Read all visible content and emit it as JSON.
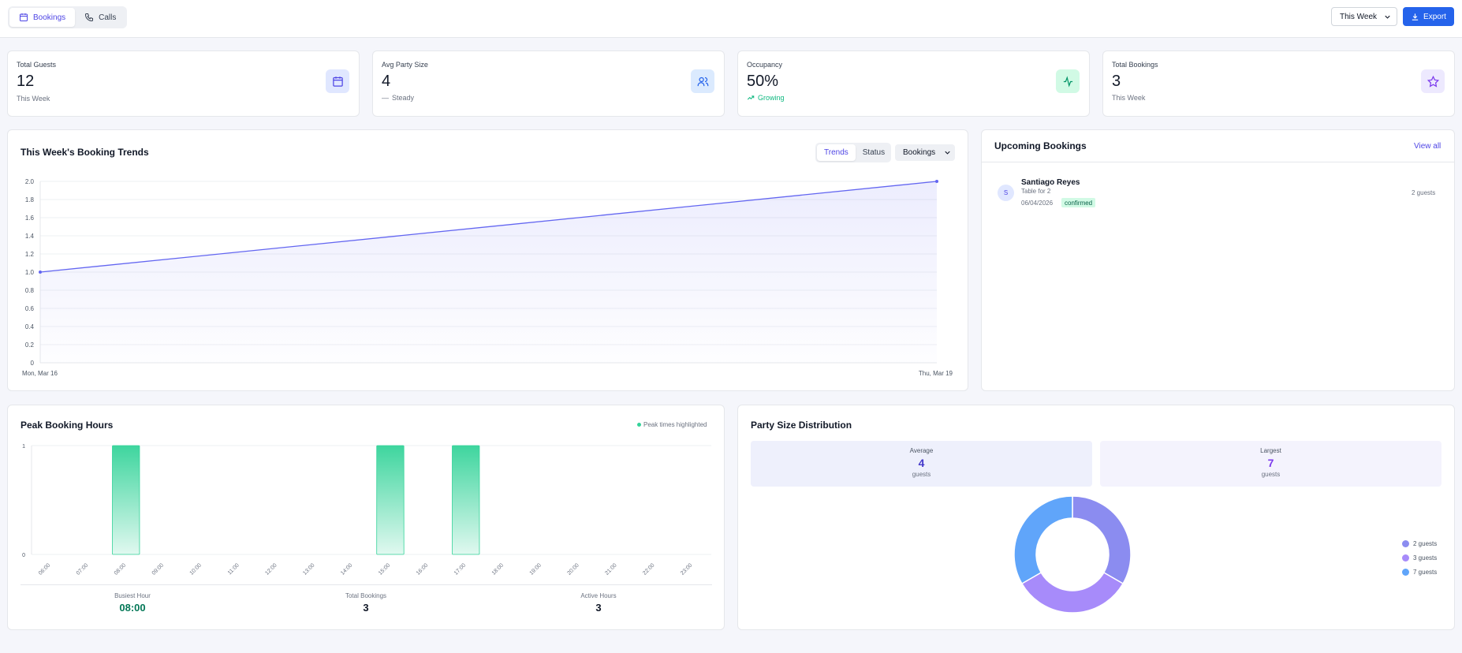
{
  "header": {
    "tabs": [
      {
        "label": "Bookings",
        "icon": "calendar-icon",
        "active": true
      },
      {
        "label": "Calls",
        "icon": "phone-icon",
        "active": false
      }
    ],
    "period_select": "This Week",
    "export_label": "Export"
  },
  "stats": [
    {
      "label": "Total Guests",
      "value": "12",
      "sub": "This Week",
      "icon": "calendar-icon",
      "icon_bg": "#e0e7ff",
      "icon_color": "#4f46e5"
    },
    {
      "label": "Avg Party Size",
      "value": "4",
      "sub": "Steady",
      "sub_prefix": "—",
      "icon": "users-icon",
      "icon_bg": "#dbeafe",
      "icon_color": "#2563eb"
    },
    {
      "label": "Occupancy",
      "value": "50%",
      "sub": "Growing",
      "icon": "activity-icon",
      "icon_bg": "#d1fae5",
      "icon_color": "#059669"
    },
    {
      "label": "Total Bookings",
      "value": "3",
      "sub": "This Week",
      "icon": "star-icon",
      "icon_bg": "#ede9fe",
      "icon_color": "#7c3aed"
    }
  ],
  "trends": {
    "title": "This Week's Booking Trends",
    "view_tabs": [
      "Trends",
      "Status"
    ],
    "metric_select": "Bookings",
    "chart_data": {
      "type": "area",
      "x": [
        "Mon, Mar 16",
        "Thu, Mar 19"
      ],
      "values": [
        1.0,
        2.0
      ],
      "ylim": [
        0,
        2.0
      ],
      "yticks": [
        "0",
        "0.2",
        "0.4",
        "0.6",
        "0.8",
        "1.0",
        "1.2",
        "1.4",
        "1.6",
        "1.8",
        "2.0"
      ],
      "color": "#6366f1",
      "grid": true
    }
  },
  "upcoming": {
    "title": "Upcoming Bookings",
    "view_all": "View all",
    "items": [
      {
        "initial": "S",
        "name": "Santiago Reyes",
        "table": "Table for 2",
        "date": "06/04/2026",
        "status": "confirmed",
        "guests": "2 guests"
      }
    ]
  },
  "peak_hours": {
    "title": "Peak Booking Hours",
    "legend": "Peak times highlighted",
    "chart_data": {
      "type": "bar",
      "categories": [
        "06:00",
        "07:00",
        "08:00",
        "09:00",
        "10:00",
        "11:00",
        "12:00",
        "13:00",
        "14:00",
        "15:00",
        "16:00",
        "17:00",
        "18:00",
        "19:00",
        "20:00",
        "21:00",
        "22:00",
        "23:00"
      ],
      "values": [
        0,
        0,
        1,
        0,
        0,
        0,
        0,
        0,
        0,
        1,
        0,
        1,
        0,
        0,
        0,
        0,
        0,
        0
      ],
      "ylim": [
        0,
        1
      ],
      "yticks": [
        "0",
        "1"
      ],
      "color": "#34d399"
    },
    "summary": [
      {
        "label": "Busiest Hour",
        "value": "08:00"
      },
      {
        "label": "Total Bookings",
        "value": "3"
      },
      {
        "label": "Active Hours",
        "value": "3"
      }
    ]
  },
  "party_size": {
    "title": "Party Size Distribution",
    "average": {
      "label": "Average",
      "value": "4",
      "unit": "guests"
    },
    "largest": {
      "label": "Largest",
      "value": "7",
      "unit": "guests"
    },
    "chart_data": {
      "type": "pie",
      "categories": [
        "2 guests",
        "3 guests",
        "7 guests"
      ],
      "values": [
        1,
        1,
        1
      ],
      "colors": [
        "#8b8cf0",
        "#a78bfa",
        "#60a5fa"
      ]
    }
  }
}
